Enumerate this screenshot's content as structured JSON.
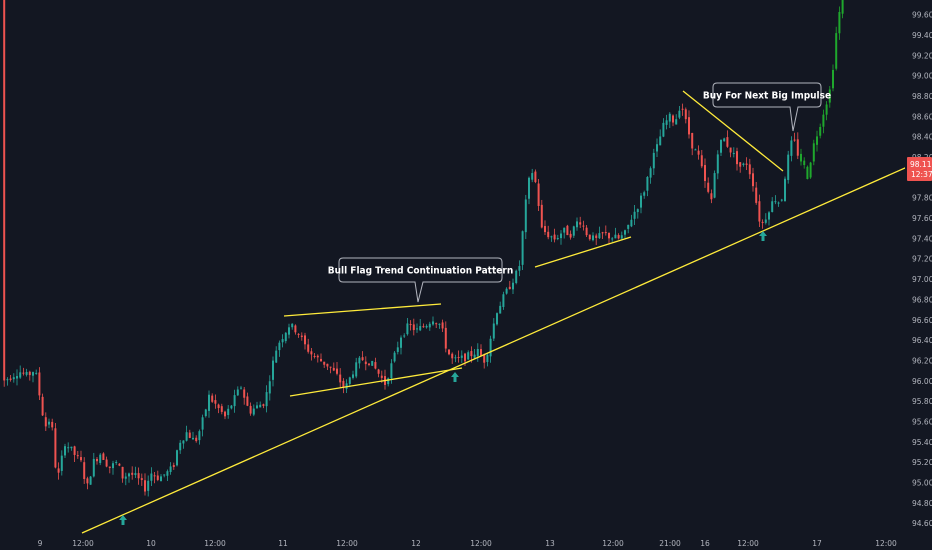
{
  "chart_data": {
    "type": "candlestick",
    "y_axis": {
      "ticks": [
        "94.60",
        "94.80",
        "95.00",
        "95.20",
        "95.40",
        "95.60",
        "95.80",
        "96.00",
        "96.20",
        "96.40",
        "96.60",
        "96.80",
        "97.00",
        "97.20",
        "97.40",
        "97.60",
        "97.80",
        "98.00",
        "98.20",
        "98.40",
        "98.60",
        "98.80",
        "99.00",
        "99.20",
        "99.40",
        "99.60"
      ]
    },
    "x_axis": {
      "ticks": [
        "9",
        "12:00",
        "10",
        "12:00",
        "11",
        "12:00",
        "12",
        "12:00",
        "13",
        "12:00",
        "21:00",
        "16",
        "12:00",
        "17",
        "12:00"
      ]
    },
    "price_tag": {
      "price": "98.11",
      "countdown": "12:37"
    },
    "annotations": [
      {
        "text": "Bull Flag Trend Continuation Pattern"
      },
      {
        "text": "Buy For Next Big Impulse"
      }
    ],
    "trend_line": {
      "from": {
        "x": "9 ~15:00",
        "y": 94.53
      },
      "to": {
        "x": "17 ~20:00",
        "y": 98.15
      }
    },
    "flag_upper": {
      "from": {
        "x": "11 ~00:00",
        "y": 96.62
      },
      "to": {
        "x": "12 ~06:00",
        "y": 96.72
      }
    },
    "flag_lower": {
      "from": {
        "x": "11 ~00:00",
        "y": 95.81
      },
      "to": {
        "x": "12 ~08:00",
        "y": 96.08
      }
    },
    "bull_flag_upper_line_value_range": [
      96.62,
      96.72
    ],
    "anchor_points": [
      {
        "x": 82,
        "y": 94.53
      },
      {
        "x": 123,
        "y": 94.6
      },
      {
        "x": 456,
        "y": 95.99
      },
      {
        "x": 763,
        "y": 97.4
      }
    ],
    "price_path": [
      {
        "x": 2,
        "y": 96.0
      },
      {
        "x": 10,
        "y": 96.05
      },
      {
        "x": 18,
        "y": 96.1
      },
      {
        "x": 26,
        "y": 96.05
      },
      {
        "x": 34,
        "y": 96.12
      },
      {
        "x": 44,
        "y": 95.55
      },
      {
        "x": 50,
        "y": 95.65
      },
      {
        "x": 56,
        "y": 95.0
      },
      {
        "x": 64,
        "y": 95.4
      },
      {
        "x": 72,
        "y": 95.3
      },
      {
        "x": 80,
        "y": 95.2
      },
      {
        "x": 86,
        "y": 94.95
      },
      {
        "x": 92,
        "y": 95.2
      },
      {
        "x": 100,
        "y": 95.3
      },
      {
        "x": 108,
        "y": 95.15
      },
      {
        "x": 116,
        "y": 95.2
      },
      {
        "x": 122,
        "y": 95.05
      },
      {
        "x": 128,
        "y": 95.1
      },
      {
        "x": 136,
        "y": 95.05
      },
      {
        "x": 144,
        "y": 94.95
      },
      {
        "x": 150,
        "y": 95.1
      },
      {
        "x": 158,
        "y": 95.05
      },
      {
        "x": 166,
        "y": 95.1
      },
      {
        "x": 172,
        "y": 95.15
      },
      {
        "x": 178,
        "y": 95.4
      },
      {
        "x": 186,
        "y": 95.5
      },
      {
        "x": 194,
        "y": 95.4
      },
      {
        "x": 200,
        "y": 95.55
      },
      {
        "x": 208,
        "y": 95.85
      },
      {
        "x": 216,
        "y": 95.75
      },
      {
        "x": 224,
        "y": 95.65
      },
      {
        "x": 232,
        "y": 95.8
      },
      {
        "x": 240,
        "y": 95.95
      },
      {
        "x": 248,
        "y": 95.7
      },
      {
        "x": 256,
        "y": 95.75
      },
      {
        "x": 264,
        "y": 95.8
      },
      {
        "x": 270,
        "y": 96.1
      },
      {
        "x": 276,
        "y": 96.35
      },
      {
        "x": 282,
        "y": 96.45
      },
      {
        "x": 288,
        "y": 96.55
      },
      {
        "x": 296,
        "y": 96.5
      },
      {
        "x": 304,
        "y": 96.35
      },
      {
        "x": 312,
        "y": 96.25
      },
      {
        "x": 320,
        "y": 96.2
      },
      {
        "x": 328,
        "y": 96.15
      },
      {
        "x": 336,
        "y": 96.05
      },
      {
        "x": 344,
        "y": 95.92
      },
      {
        "x": 352,
        "y": 96.1
      },
      {
        "x": 360,
        "y": 96.22
      },
      {
        "x": 368,
        "y": 96.2
      },
      {
        "x": 376,
        "y": 96.1
      },
      {
        "x": 384,
        "y": 95.98
      },
      {
        "x": 392,
        "y": 96.2
      },
      {
        "x": 400,
        "y": 96.45
      },
      {
        "x": 408,
        "y": 96.55
      },
      {
        "x": 416,
        "y": 96.5
      },
      {
        "x": 424,
        "y": 96.55
      },
      {
        "x": 432,
        "y": 96.62
      },
      {
        "x": 440,
        "y": 96.55
      },
      {
        "x": 446,
        "y": 96.3
      },
      {
        "x": 452,
        "y": 96.2
      },
      {
        "x": 460,
        "y": 96.22
      },
      {
        "x": 468,
        "y": 96.25
      },
      {
        "x": 476,
        "y": 96.3
      },
      {
        "x": 484,
        "y": 96.2
      },
      {
        "x": 490,
        "y": 96.45
      },
      {
        "x": 496,
        "y": 96.7
      },
      {
        "x": 504,
        "y": 96.85
      },
      {
        "x": 512,
        "y": 97.0
      },
      {
        "x": 518,
        "y": 97.1
      },
      {
        "x": 524,
        "y": 97.7
      },
      {
        "x": 530,
        "y": 98.1
      },
      {
        "x": 536,
        "y": 97.9
      },
      {
        "x": 540,
        "y": 97.5
      },
      {
        "x": 546,
        "y": 97.45
      },
      {
        "x": 554,
        "y": 97.4
      },
      {
        "x": 562,
        "y": 97.48
      },
      {
        "x": 570,
        "y": 97.45
      },
      {
        "x": 578,
        "y": 97.6
      },
      {
        "x": 586,
        "y": 97.45
      },
      {
        "x": 594,
        "y": 97.38
      },
      {
        "x": 602,
        "y": 97.45
      },
      {
        "x": 610,
        "y": 97.42
      },
      {
        "x": 618,
        "y": 97.4
      },
      {
        "x": 624,
        "y": 97.45
      },
      {
        "x": 630,
        "y": 97.6
      },
      {
        "x": 638,
        "y": 97.75
      },
      {
        "x": 644,
        "y": 97.9
      },
      {
        "x": 650,
        "y": 98.15
      },
      {
        "x": 656,
        "y": 98.3
      },
      {
        "x": 662,
        "y": 98.5
      },
      {
        "x": 668,
        "y": 98.6
      },
      {
        "x": 674,
        "y": 98.55
      },
      {
        "x": 680,
        "y": 98.75
      },
      {
        "x": 686,
        "y": 98.5
      },
      {
        "x": 692,
        "y": 98.3
      },
      {
        "x": 698,
        "y": 98.2
      },
      {
        "x": 704,
        "y": 97.95
      },
      {
        "x": 710,
        "y": 97.75
      },
      {
        "x": 716,
        "y": 98.25
      },
      {
        "x": 722,
        "y": 98.4
      },
      {
        "x": 728,
        "y": 98.3
      },
      {
        "x": 734,
        "y": 98.2
      },
      {
        "x": 740,
        "y": 98.1
      },
      {
        "x": 746,
        "y": 98.15
      },
      {
        "x": 752,
        "y": 97.95
      },
      {
        "x": 758,
        "y": 97.6
      },
      {
        "x": 762,
        "y": 97.55
      },
      {
        "x": 768,
        "y": 97.7
      },
      {
        "x": 774,
        "y": 97.8
      },
      {
        "x": 780,
        "y": 97.75
      },
      {
        "x": 786,
        "y": 98.15
      },
      {
        "x": 792,
        "y": 98.4
      },
      {
        "x": 798,
        "y": 98.2
      },
      {
        "x": 802,
        "y": 98.15
      },
      {
        "x": 806,
        "y": 98.0
      },
      {
        "x": 812,
        "y": 98.3
      },
      {
        "x": 818,
        "y": 98.5
      },
      {
        "x": 824,
        "y": 98.7
      },
      {
        "x": 830,
        "y": 98.9
      },
      {
        "x": 836,
        "y": 99.5
      },
      {
        "x": 842,
        "y": 99.8
      }
    ],
    "colors": {
      "background": "#131722",
      "up": "#26a69a",
      "down": "#ef5350",
      "projection": "#1fa82d",
      "trend_line": "#ffeb3b",
      "callout_bg": "#131722",
      "callout_border": "#b2b5be",
      "price_tag": "#ef5350"
    }
  }
}
